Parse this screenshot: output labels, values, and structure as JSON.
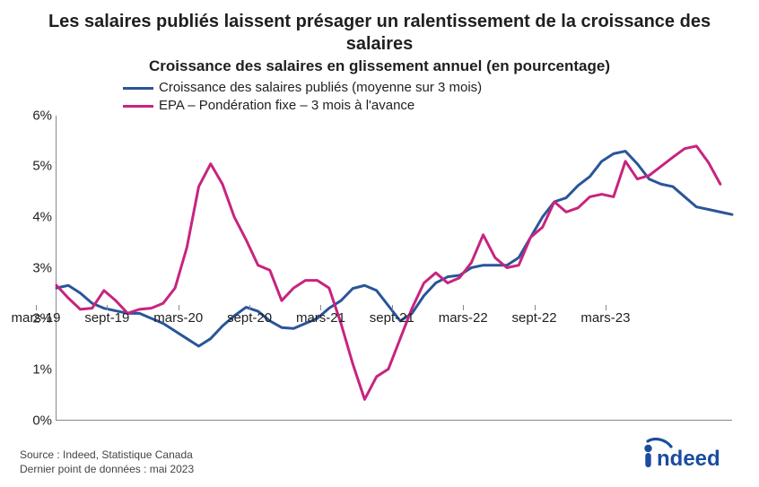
{
  "title": "Les salaires publiés laissent présager un ralentissement de la croissance des salaires",
  "subtitle": "Croissance des salaires en glissement annuel (en pourcentage)",
  "legend": {
    "series1": {
      "label": "Croissance des salaires publiés (moyenne sur 3 mois)",
      "color": "#2a5599"
    },
    "series2": {
      "label": "EPA – Pondération fixe – 3 mois à l'avance",
      "color": "#c7247f"
    }
  },
  "chart": {
    "type": "line",
    "ylim": [
      0,
      6
    ],
    "ytick_step": 1,
    "y_suffix": "%",
    "x_labels": [
      "mars-19",
      "sept-19",
      "mars-20",
      "sept-20",
      "mars-21",
      "sept-21",
      "mars-22",
      "sept-22",
      "mars-23"
    ],
    "n_points": 51,
    "line_width": 3,
    "axis_color": "#888888",
    "background_color": "#ffffff",
    "text_color": "#1f1f1f",
    "title_fontsize": 20,
    "subtitle_fontsize": 17,
    "label_fontsize": 15,
    "series1_values": [
      2.6,
      2.65,
      2.5,
      2.3,
      2.2,
      2.15,
      2.1,
      2.1,
      2.0,
      1.9,
      1.75,
      1.6,
      1.45,
      1.6,
      1.85,
      2.05,
      2.22,
      2.14,
      1.95,
      1.82,
      1.8,
      1.9,
      2.0,
      2.2,
      2.35,
      2.59,
      2.65,
      2.55,
      2.25,
      1.95,
      2.1,
      2.45,
      2.7,
      2.82,
      2.85,
      3.0,
      3.05,
      3.05,
      3.05,
      3.2,
      3.6,
      4.0,
      4.3,
      4.38,
      4.62,
      4.8,
      5.1,
      5.25,
      5.3,
      5.05,
      4.75
    ],
    "series1_tail": [
      4.65,
      4.6,
      4.4,
      4.2,
      4.15,
      4.1,
      4.05
    ],
    "series2_values": [
      2.65,
      2.4,
      2.18,
      2.2,
      2.55,
      2.35,
      2.1,
      2.18,
      2.2,
      2.3,
      2.6,
      3.4,
      4.6,
      5.05,
      4.65,
      4.0,
      3.55,
      3.05,
      2.95,
      2.35,
      2.6,
      2.75,
      2.75,
      2.6,
      1.9,
      1.1,
      0.4,
      0.85,
      1.0,
      1.6,
      2.2,
      2.7,
      2.9,
      2.7,
      2.8,
      3.1,
      3.65,
      3.2,
      3.0,
      3.05,
      3.6,
      3.8,
      4.3,
      4.1,
      4.18,
      4.4,
      4.45,
      4.4,
      5.1,
      4.75,
      4.82
    ],
    "series2_tail": [
      5.0,
      5.18,
      5.35,
      5.4,
      5.08,
      4.65
    ]
  },
  "footer": {
    "source": "Source : Indeed, Statistique Canada",
    "lastpoint": "Dernier point de données : mai 2023"
  },
  "logo": {
    "text": "indeed",
    "color": "#1a4ca0"
  }
}
